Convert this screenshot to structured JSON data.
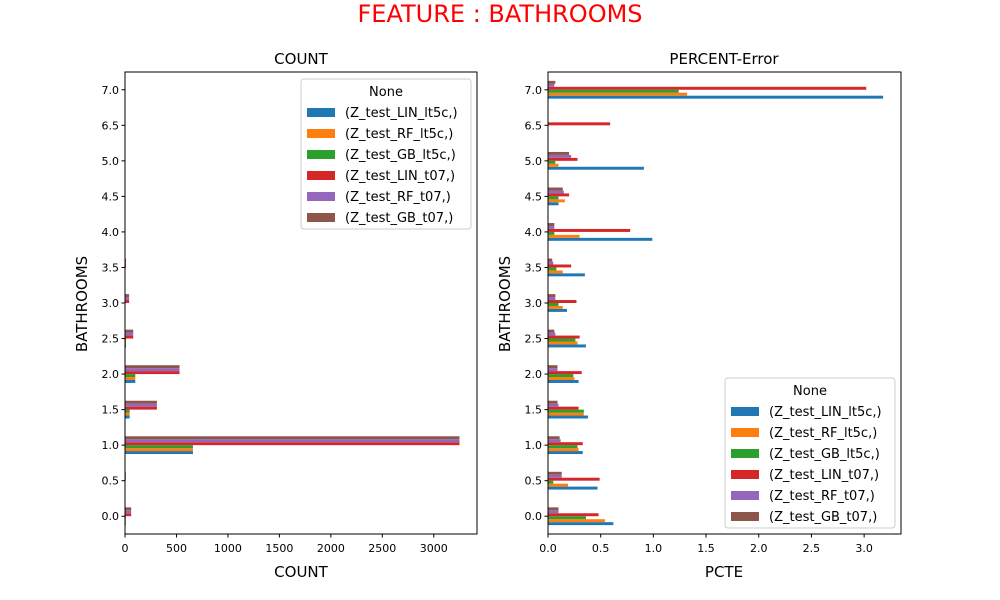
{
  "suptitle": "FEATURE : BATHROOMS",
  "suptitle_color": "#ff0000",
  "series_colors": [
    "#1f77b4",
    "#ff7f0e",
    "#2ca02c",
    "#d62728",
    "#9467bd",
    "#8c564b"
  ],
  "chart_data": [
    {
      "type": "bar",
      "orientation": "horizontal",
      "title": "COUNT",
      "xlabel": "COUNT",
      "ylabel": "BATHROOMS",
      "categories": [
        "0.0",
        "0.5",
        "1.0",
        "1.5",
        "2.0",
        "2.5",
        "3.0",
        "3.5",
        "4.0",
        "4.5",
        "5.0",
        "6.5",
        "7.0"
      ],
      "xlim": [
        0,
        3420
      ],
      "xticks": [
        0,
        500,
        1000,
        1500,
        2000,
        2500,
        3000
      ],
      "grid": false,
      "legend": {
        "title": "None",
        "position": "upper right"
      },
      "series": [
        {
          "name": "(Z_test_LIN_lt5c,)",
          "values": [
            8,
            0,
            660,
            45,
            100,
            10,
            3,
            0,
            0,
            0,
            0,
            0,
            0
          ]
        },
        {
          "name": "(Z_test_RF_lt5c,)",
          "values": [
            8,
            0,
            660,
            45,
            100,
            10,
            3,
            0,
            0,
            0,
            0,
            0,
            0
          ]
        },
        {
          "name": "(Z_test_GB_lt5c,)",
          "values": [
            8,
            0,
            660,
            45,
            100,
            10,
            3,
            0,
            0,
            0,
            0,
            0,
            0
          ]
        },
        {
          "name": "(Z_test_LIN_t07,)",
          "values": [
            60,
            8,
            3250,
            310,
            530,
            80,
            40,
            10,
            0,
            0,
            0,
            0,
            0
          ]
        },
        {
          "name": "(Z_test_RF_t07,)",
          "values": [
            60,
            8,
            3250,
            310,
            530,
            80,
            40,
            10,
            0,
            0,
            0,
            0,
            0
          ]
        },
        {
          "name": "(Z_test_GB_t07,)",
          "values": [
            60,
            8,
            3250,
            310,
            530,
            80,
            40,
            10,
            0,
            0,
            0,
            0,
            0
          ]
        }
      ]
    },
    {
      "type": "bar",
      "orientation": "horizontal",
      "title": "PERCENT-Error",
      "xlabel": "PCTE",
      "ylabel": "BATHROOMS",
      "categories": [
        "0.0",
        "0.5",
        "1.0",
        "1.5",
        "2.0",
        "2.5",
        "3.0",
        "3.5",
        "4.0",
        "4.5",
        "5.0",
        "6.5",
        "7.0"
      ],
      "xlim": [
        0,
        3.35
      ],
      "xticks": [
        0.0,
        0.5,
        1.0,
        1.5,
        2.0,
        2.5,
        3.0
      ],
      "xtick_labels": [
        "0.0",
        "0.5",
        "1.0",
        "1.5",
        "2.0",
        "2.5",
        "3.0"
      ],
      "grid": false,
      "legend": {
        "title": "None",
        "position": "lower right"
      },
      "series": [
        {
          "name": "(Z_test_LIN_lt5c,)",
          "values": [
            0.62,
            0.47,
            0.33,
            0.38,
            0.29,
            0.36,
            0.18,
            0.35,
            0.99,
            0.1,
            0.91,
            0.0,
            3.18
          ]
        },
        {
          "name": "(Z_test_RF_lt5c,)",
          "values": [
            0.54,
            0.19,
            0.29,
            0.34,
            0.25,
            0.28,
            0.14,
            0.14,
            0.3,
            0.16,
            0.1,
            0.0,
            1.32
          ]
        },
        {
          "name": "(Z_test_GB_lt5c,)",
          "values": [
            0.36,
            0.05,
            0.28,
            0.34,
            0.24,
            0.26,
            0.1,
            0.08,
            0.06,
            0.1,
            0.07,
            0.0,
            1.24
          ]
        },
        {
          "name": "(Z_test_LIN_t07,)",
          "values": [
            0.48,
            0.49,
            0.33,
            0.29,
            0.32,
            0.3,
            0.27,
            0.22,
            0.78,
            0.2,
            0.28,
            0.59,
            3.02
          ]
        },
        {
          "name": "(Z_test_RF_t07,)",
          "values": [
            0.1,
            0.13,
            0.12,
            0.1,
            0.09,
            0.07,
            0.07,
            0.05,
            0.06,
            0.15,
            0.22,
            0.0,
            0.06
          ]
        },
        {
          "name": "(Z_test_GB_t07,)",
          "values": [
            0.1,
            0.13,
            0.11,
            0.09,
            0.09,
            0.06,
            0.07,
            0.04,
            0.06,
            0.14,
            0.2,
            0.0,
            0.07
          ]
        }
      ]
    }
  ]
}
